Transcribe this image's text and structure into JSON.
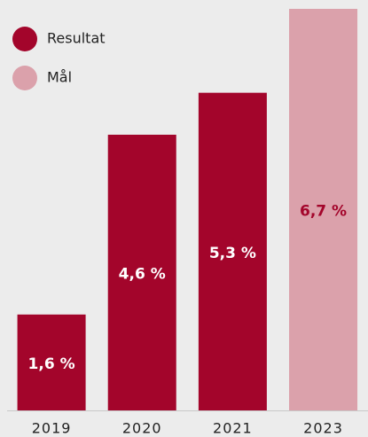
{
  "chart_data": {
    "type": "bar",
    "categories": [
      "2019",
      "2020",
      "2021",
      "2023"
    ],
    "series": [
      {
        "name": "Resultat",
        "color": "#a3052b",
        "label_color": "#ffffff",
        "values": [
          1.6,
          4.6,
          5.3,
          null
        ],
        "value_labels": [
          "1,6 %",
          "4,6 %",
          "5,3 %",
          null
        ]
      },
      {
        "name": "Mål",
        "color": "#dba1ab",
        "label_color": "#a3052b",
        "values": [
          null,
          null,
          null,
          6.7
        ],
        "value_labels": [
          null,
          null,
          null,
          "6,7 %"
        ]
      }
    ],
    "ylim": [
      0,
      6.7
    ],
    "legend": "top-left"
  }
}
